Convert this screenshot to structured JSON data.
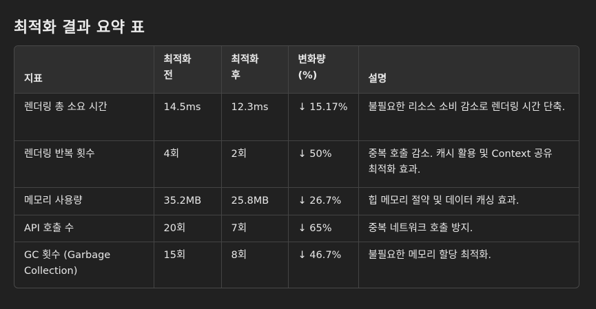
{
  "title": "최적화 결과 요약 표",
  "table": {
    "headers": [
      [
        "지표"
      ],
      [
        "최적화",
        "전"
      ],
      [
        "최적화",
        "후"
      ],
      [
        "변화량",
        "(%)"
      ],
      [
        "설명"
      ]
    ],
    "rows": [
      [
        "렌더링 총 소요 시간",
        "14.5ms",
        "12.3ms",
        "↓ 15.17%",
        "불필요한 리소스 소비 감소로 렌더링 시간 단축."
      ],
      [
        "렌더링 반복 횟수",
        "4회",
        "2회",
        "↓ 50%",
        "중복 호출 감소. 캐시 활용 및 Context 공유 최적화 효과."
      ],
      [
        "메모리 사용량",
        "35.2MB",
        "25.8MB",
        "↓ 26.7%",
        "힙 메모리 절약 및 데이터 캐싱 효과."
      ],
      [
        "API 호출 수",
        "20회",
        "7회",
        "↓ 65%",
        "중복 네트워크 호출 방지."
      ],
      [
        "GC 횟수 (Garbage Collection)",
        "15회",
        "8회",
        "↓ 46.7%",
        "불필요한 메모리 할당 최적화."
      ]
    ]
  }
}
